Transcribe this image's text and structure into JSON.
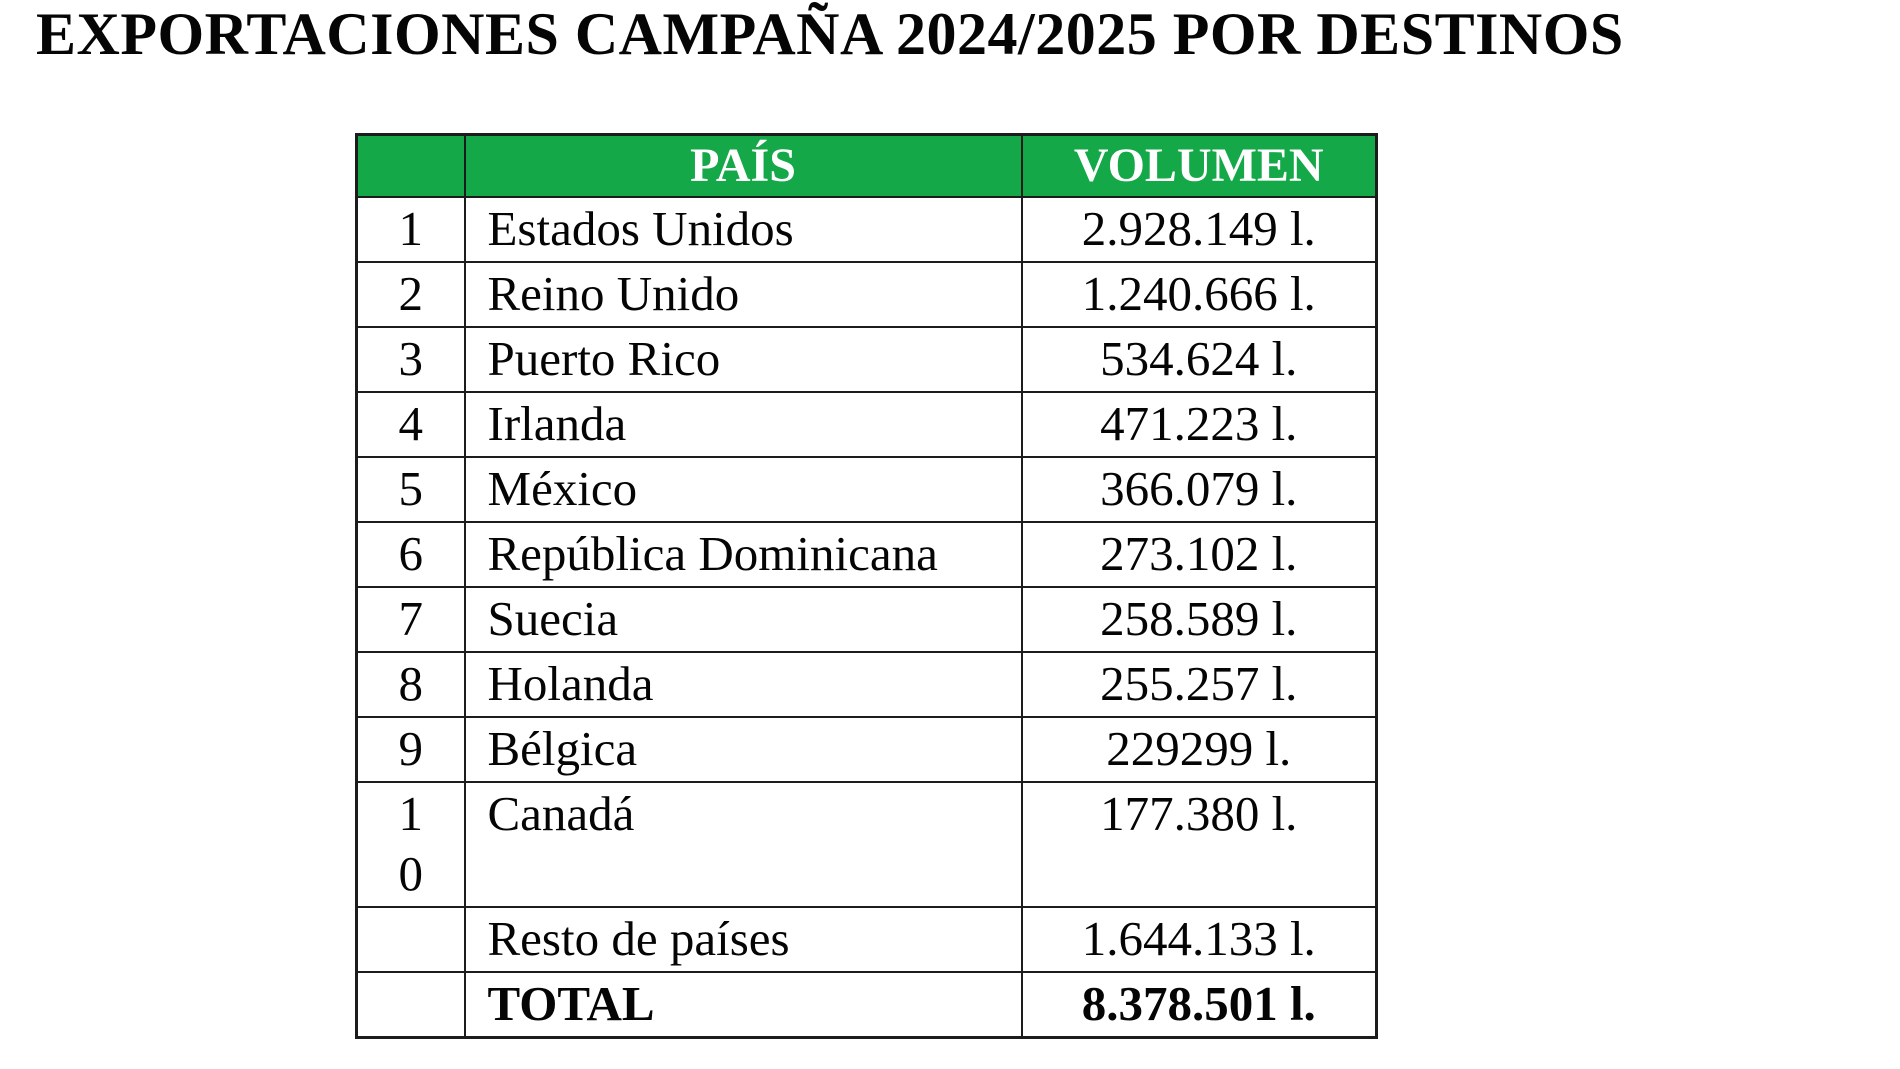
{
  "title": "EXPORTACIONES CAMPAÑA 2024/2025 POR DESTINOS",
  "table": {
    "header": {
      "index": "",
      "country": "PAÍS",
      "volume": "VOLUMEN"
    },
    "rows": [
      {
        "index": "1",
        "country": "Estados Unidos",
        "volume": "2.928.149 l.",
        "bold": false
      },
      {
        "index": "2",
        "country": "Reino Unido",
        "volume": "1.240.666 l.",
        "bold": false
      },
      {
        "index": "3",
        "country": "Puerto Rico",
        "volume": "534.624 l.",
        "bold": false
      },
      {
        "index": "4",
        "country": "Irlanda",
        "volume": "471.223 l.",
        "bold": false
      },
      {
        "index": "5",
        "country": "México",
        "volume": "366.079 l.",
        "bold": false
      },
      {
        "index": "6",
        "country": "República Dominicana",
        "volume": "273.102 l.",
        "bold": false
      },
      {
        "index": "7",
        "country": "Suecia",
        "volume": "258.589 l.",
        "bold": false
      },
      {
        "index": "8",
        "country": "Holanda",
        "volume": "255.257 l.",
        "bold": false
      },
      {
        "index": "9",
        "country": "Bélgica",
        "volume": "229299 l.",
        "bold": false
      },
      {
        "index": "10",
        "country": "Canadá",
        "volume": "177.380 l.",
        "bold": false
      },
      {
        "index": "",
        "country": "Resto de países",
        "volume": "1.644.133 l.",
        "bold": false
      },
      {
        "index": "",
        "country": "TOTAL",
        "volume": "8.378.501 l.",
        "bold": true
      }
    ],
    "unit": "l.",
    "colors": {
      "header_bg": "#14a848",
      "header_text": "#ffffff",
      "border": "#1c1c1c",
      "text": "#050505",
      "page_bg": "#ffffff"
    }
  }
}
